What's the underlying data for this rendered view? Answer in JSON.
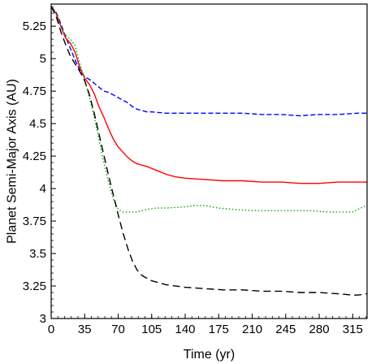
{
  "chart_data": {
    "type": "line",
    "title": "",
    "xlabel": "Time (yr)",
    "ylabel": "Planet Semi-Major Axis (AU)",
    "xlim": [
      0,
      330
    ],
    "ylim": [
      3,
      5.42
    ],
    "xticks": [
      0,
      35,
      70,
      105,
      140,
      175,
      210,
      245,
      280,
      315
    ],
    "yticks": [
      3,
      3.25,
      3.5,
      3.75,
      4,
      4.25,
      4.5,
      4.75,
      5,
      5.25
    ],
    "ytick_labels": [
      "3",
      "3.25",
      "3.5",
      "3.75",
      "4",
      "4.25",
      "4.5",
      "4.75",
      "5",
      "5.25"
    ],
    "grid": false,
    "series": [
      {
        "color": "#0000ff",
        "dash": "dashed",
        "x": [
          0,
          5,
          10,
          15,
          20,
          25,
          30,
          35,
          40,
          45,
          50,
          55,
          60,
          65,
          70,
          75,
          80,
          85,
          90,
          95,
          100,
          105,
          120,
          140,
          160,
          180,
          200,
          220,
          240,
          260,
          280,
          300,
          320,
          330
        ],
        "y": [
          5.4,
          5.36,
          5.27,
          5.17,
          5.08,
          4.99,
          4.91,
          4.86,
          4.84,
          4.81,
          4.78,
          4.75,
          4.74,
          4.72,
          4.7,
          4.68,
          4.66,
          4.63,
          4.61,
          4.6,
          4.59,
          4.59,
          4.58,
          4.58,
          4.58,
          4.58,
          4.58,
          4.57,
          4.57,
          4.56,
          4.57,
          4.57,
          4.58,
          4.58
        ]
      },
      {
        "color": "#ff0000",
        "dash": "solid",
        "x": [
          0,
          5,
          10,
          15,
          20,
          25,
          30,
          35,
          40,
          45,
          50,
          55,
          60,
          65,
          70,
          75,
          80,
          85,
          90,
          100,
          110,
          120,
          130,
          140,
          160,
          180,
          200,
          220,
          240,
          260,
          280,
          300,
          320,
          330
        ],
        "y": [
          5.4,
          5.35,
          5.25,
          5.16,
          5.12,
          5.05,
          4.93,
          4.85,
          4.8,
          4.73,
          4.63,
          4.55,
          4.46,
          4.38,
          4.32,
          4.28,
          4.24,
          4.21,
          4.19,
          4.17,
          4.14,
          4.11,
          4.09,
          4.08,
          4.07,
          4.06,
          4.06,
          4.05,
          4.05,
          4.04,
          4.04,
          4.05,
          4.05,
          4.05
        ]
      },
      {
        "color": "#00aa00",
        "dash": "dotted",
        "x": [
          0,
          5,
          10,
          15,
          20,
          25,
          30,
          35,
          40,
          45,
          50,
          55,
          60,
          65,
          70,
          75,
          80,
          90,
          100,
          110,
          120,
          140,
          150,
          160,
          175,
          190,
          210,
          230,
          250,
          270,
          290,
          300,
          315,
          320,
          330
        ],
        "y": [
          5.4,
          5.35,
          5.25,
          5.18,
          5.15,
          5.1,
          4.96,
          4.84,
          4.7,
          4.55,
          4.38,
          4.2,
          4.05,
          3.92,
          3.84,
          3.82,
          3.82,
          3.82,
          3.84,
          3.85,
          3.85,
          3.86,
          3.87,
          3.87,
          3.85,
          3.84,
          3.83,
          3.83,
          3.83,
          3.83,
          3.82,
          3.82,
          3.82,
          3.84,
          3.87
        ]
      },
      {
        "color": "#000000",
        "dash": "longdash",
        "x": [
          0,
          5,
          10,
          15,
          20,
          25,
          30,
          35,
          40,
          45,
          50,
          55,
          60,
          65,
          70,
          75,
          80,
          85,
          90,
          95,
          100,
          105,
          110,
          120,
          140,
          160,
          180,
          200,
          220,
          240,
          260,
          280,
          300,
          315,
          320,
          330
        ],
        "y": [
          5.4,
          5.33,
          5.21,
          5.11,
          5.02,
          4.96,
          4.9,
          4.83,
          4.72,
          4.58,
          4.42,
          4.26,
          4.1,
          3.95,
          3.8,
          3.66,
          3.54,
          3.44,
          3.37,
          3.33,
          3.31,
          3.29,
          3.28,
          3.26,
          3.24,
          3.23,
          3.22,
          3.22,
          3.21,
          3.21,
          3.2,
          3.2,
          3.19,
          3.18,
          3.18,
          3.19
        ]
      }
    ]
  }
}
